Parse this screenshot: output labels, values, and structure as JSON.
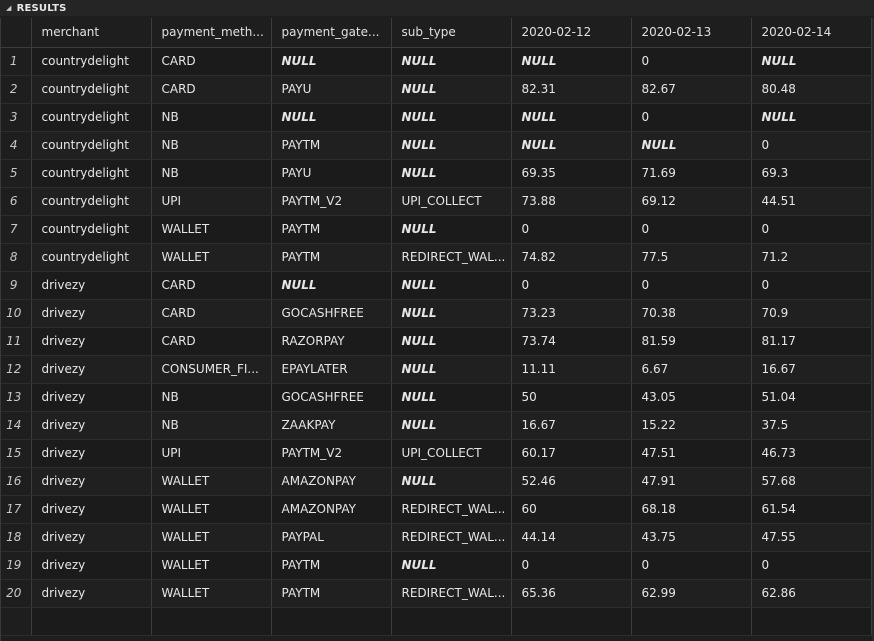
{
  "panel": {
    "title": "RESULTS",
    "collapse_icon": "triangle-down"
  },
  "columns": [
    "",
    "merchant",
    "payment_meth...",
    "payment_gate...",
    "sub_type",
    "2020-02-12",
    "2020-02-13",
    "2020-02-14"
  ],
  "rows": [
    [
      "1",
      "countrydelight",
      "CARD",
      "NULL",
      "NULL",
      "NULL",
      "0",
      "NULL"
    ],
    [
      "2",
      "countrydelight",
      "CARD",
      "PAYU",
      "NULL",
      "82.31",
      "82.67",
      "80.48"
    ],
    [
      "3",
      "countrydelight",
      "NB",
      "NULL",
      "NULL",
      "NULL",
      "0",
      "NULL"
    ],
    [
      "4",
      "countrydelight",
      "NB",
      "PAYTM",
      "NULL",
      "NULL",
      "NULL",
      "0"
    ],
    [
      "5",
      "countrydelight",
      "NB",
      "PAYU",
      "NULL",
      "69.35",
      "71.69",
      "69.3"
    ],
    [
      "6",
      "countrydelight",
      "UPI",
      "PAYTM_V2",
      "UPI_COLLECT",
      "73.88",
      "69.12",
      "44.51"
    ],
    [
      "7",
      "countrydelight",
      "WALLET",
      "PAYTM",
      "NULL",
      "0",
      "0",
      "0"
    ],
    [
      "8",
      "countrydelight",
      "WALLET",
      "PAYTM",
      "REDIRECT_WAL...",
      "74.82",
      "77.5",
      "71.2"
    ],
    [
      "9",
      "drivezy",
      "CARD",
      "NULL",
      "NULL",
      "0",
      "0",
      "0"
    ],
    [
      "10",
      "drivezy",
      "CARD",
      "GOCASHFREE",
      "NULL",
      "73.23",
      "70.38",
      "70.9"
    ],
    [
      "11",
      "drivezy",
      "CARD",
      "RAZORPAY",
      "NULL",
      "73.74",
      "81.59",
      "81.17"
    ],
    [
      "12",
      "drivezy",
      "CONSUMER_FI...",
      "EPAYLATER",
      "NULL",
      "11.11",
      "6.67",
      "16.67"
    ],
    [
      "13",
      "drivezy",
      "NB",
      "GOCASHFREE",
      "NULL",
      "50",
      "43.05",
      "51.04"
    ],
    [
      "14",
      "drivezy",
      "NB",
      "ZAAKPAY",
      "NULL",
      "16.67",
      "15.22",
      "37.5"
    ],
    [
      "15",
      "drivezy",
      "UPI",
      "PAYTM_V2",
      "UPI_COLLECT",
      "60.17",
      "47.51",
      "46.73"
    ],
    [
      "16",
      "drivezy",
      "WALLET",
      "AMAZONPAY",
      "NULL",
      "52.46",
      "47.91",
      "57.68"
    ],
    [
      "17",
      "drivezy",
      "WALLET",
      "AMAZONPAY",
      "REDIRECT_WAL...",
      "60",
      "68.18",
      "61.54"
    ],
    [
      "18",
      "drivezy",
      "WALLET",
      "PAYPAL",
      "REDIRECT_WAL...",
      "44.14",
      "43.75",
      "47.55"
    ],
    [
      "19",
      "drivezy",
      "WALLET",
      "PAYTM",
      "NULL",
      "0",
      "0",
      "0"
    ],
    [
      "20",
      "drivezy",
      "WALLET",
      "PAYTM",
      "REDIRECT_WAL...",
      "65.36",
      "62.99",
      "62.86"
    ],
    [
      "",
      "",
      "",
      "",
      "",
      "",
      "",
      ""
    ]
  ]
}
